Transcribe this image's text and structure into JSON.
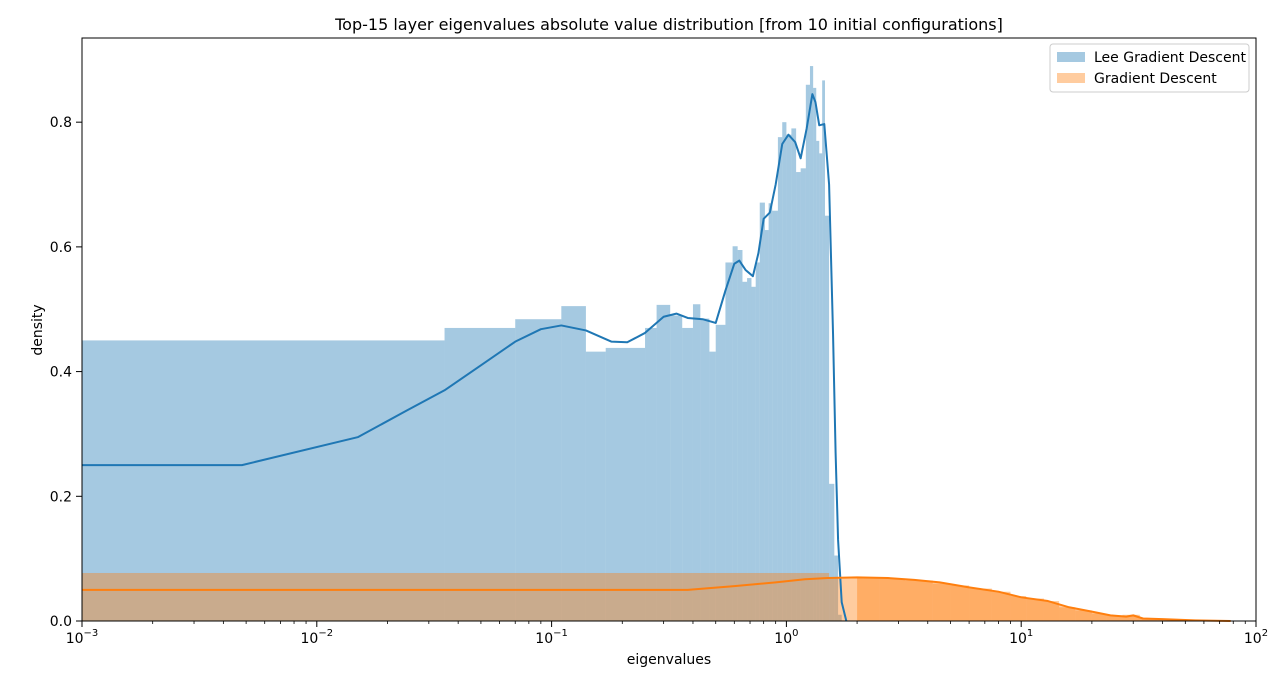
{
  "chart_data": {
    "type": "bar",
    "title": "Top-15 layer eigenvalues absolute value distribution [from 10 initial configurations]",
    "xlabel": "eigenvalues",
    "ylabel": "density",
    "xscale": "log",
    "xlim": [
      0.001,
      100
    ],
    "ylim": [
      0.0,
      0.935
    ],
    "x_ticks": [
      {
        "value": 0.001,
        "base": "10",
        "exp": "−3"
      },
      {
        "value": 0.01,
        "base": "10",
        "exp": "−2"
      },
      {
        "value": 0.1,
        "base": "10",
        "exp": "−1"
      },
      {
        "value": 1,
        "base": "10",
        "exp": "0"
      },
      {
        "value": 10,
        "base": "10",
        "exp": "1"
      },
      {
        "value": 100,
        "base": "10",
        "exp": "2"
      }
    ],
    "y_ticks": [
      {
        "value": 0.0,
        "label": "0.0"
      },
      {
        "value": 0.2,
        "label": "0.2"
      },
      {
        "value": 0.4,
        "label": "0.4"
      },
      {
        "value": 0.6,
        "label": "0.6"
      },
      {
        "value": 0.8,
        "label": "0.8"
      }
    ],
    "legend_position": "top-right",
    "series": [
      {
        "name": "Lee Gradient Descent",
        "color": "#1f77b4",
        "hist_color": "#a6c8e0",
        "hist": [
          [
            0.001,
            0.035,
            0.45
          ],
          [
            0.035,
            0.07,
            0.47
          ],
          [
            0.07,
            0.11,
            0.484
          ],
          [
            0.11,
            0.14,
            0.505
          ],
          [
            0.14,
            0.17,
            0.432
          ],
          [
            0.17,
            0.25,
            0.438
          ],
          [
            0.25,
            0.28,
            0.47
          ],
          [
            0.28,
            0.32,
            0.507
          ],
          [
            0.32,
            0.36,
            0.49
          ],
          [
            0.36,
            0.4,
            0.47
          ],
          [
            0.4,
            0.43,
            0.508
          ],
          [
            0.43,
            0.47,
            0.485
          ],
          [
            0.47,
            0.5,
            0.432
          ],
          [
            0.5,
            0.55,
            0.475
          ],
          [
            0.55,
            0.59,
            0.575
          ],
          [
            0.59,
            0.62,
            0.601
          ],
          [
            0.62,
            0.65,
            0.595
          ],
          [
            0.65,
            0.68,
            0.544
          ],
          [
            0.68,
            0.71,
            0.55
          ],
          [
            0.71,
            0.74,
            0.536
          ],
          [
            0.74,
            0.77,
            0.575
          ],
          [
            0.77,
            0.81,
            0.671
          ],
          [
            0.81,
            0.84,
            0.627
          ],
          [
            0.84,
            0.87,
            0.67
          ],
          [
            0.87,
            0.92,
            0.658
          ],
          [
            0.92,
            0.96,
            0.776
          ],
          [
            0.96,
            1.0,
            0.8
          ],
          [
            1.0,
            1.05,
            0.78
          ],
          [
            1.05,
            1.1,
            0.79
          ],
          [
            1.1,
            1.15,
            0.72
          ],
          [
            1.15,
            1.21,
            0.726
          ],
          [
            1.21,
            1.26,
            0.86
          ],
          [
            1.26,
            1.3,
            0.89
          ],
          [
            1.3,
            1.34,
            0.855
          ],
          [
            1.34,
            1.38,
            0.77
          ],
          [
            1.38,
            1.42,
            0.75
          ],
          [
            1.42,
            1.46,
            0.867
          ],
          [
            1.46,
            1.52,
            0.65
          ],
          [
            1.52,
            1.6,
            0.22
          ],
          [
            1.6,
            1.66,
            0.105
          ],
          [
            1.66,
            1.72,
            0.01
          ]
        ],
        "kde": [
          [
            0.001,
            0.25
          ],
          [
            0.0048,
            0.25
          ],
          [
            0.015,
            0.295
          ],
          [
            0.024,
            0.337
          ],
          [
            0.035,
            0.37
          ],
          [
            0.05,
            0.41
          ],
          [
            0.07,
            0.448
          ],
          [
            0.09,
            0.468
          ],
          [
            0.11,
            0.474
          ],
          [
            0.14,
            0.466
          ],
          [
            0.18,
            0.448
          ],
          [
            0.21,
            0.447
          ],
          [
            0.25,
            0.462
          ],
          [
            0.3,
            0.488
          ],
          [
            0.34,
            0.493
          ],
          [
            0.38,
            0.486
          ],
          [
            0.44,
            0.484
          ],
          [
            0.5,
            0.478
          ],
          [
            0.55,
            0.53
          ],
          [
            0.6,
            0.573
          ],
          [
            0.63,
            0.578
          ],
          [
            0.67,
            0.563
          ],
          [
            0.72,
            0.553
          ],
          [
            0.76,
            0.59
          ],
          [
            0.8,
            0.645
          ],
          [
            0.85,
            0.655
          ],
          [
            0.9,
            0.7
          ],
          [
            0.96,
            0.765
          ],
          [
            1.02,
            0.78
          ],
          [
            1.09,
            0.768
          ],
          [
            1.15,
            0.742
          ],
          [
            1.22,
            0.79
          ],
          [
            1.29,
            0.845
          ],
          [
            1.33,
            0.832
          ],
          [
            1.38,
            0.795
          ],
          [
            1.45,
            0.797
          ],
          [
            1.52,
            0.7
          ],
          [
            1.58,
            0.46
          ],
          [
            1.62,
            0.27
          ],
          [
            1.66,
            0.13
          ],
          [
            1.72,
            0.03
          ],
          [
            1.8,
            0.0
          ]
        ]
      },
      {
        "name": "Gradient Descent",
        "color": "#ff7f0e",
        "hist_color": "#ffbf86",
        "hist": [
          [
            0.001,
            1.52,
            0.077
          ],
          [
            1.52,
            2.0,
            0.069
          ],
          [
            2.0,
            2.5,
            0.07
          ],
          [
            2.5,
            3.2,
            0.068
          ],
          [
            3.2,
            4.2,
            0.065
          ],
          [
            4.2,
            5.0,
            0.06
          ],
          [
            5.0,
            6.0,
            0.057
          ],
          [
            6.0,
            7.5,
            0.052
          ],
          [
            7.5,
            9.0,
            0.047
          ],
          [
            9.0,
            10.5,
            0.04
          ],
          [
            10.5,
            12.5,
            0.036
          ],
          [
            12.5,
            14.5,
            0.032
          ],
          [
            14.5,
            17.0,
            0.022
          ],
          [
            17.0,
            20.0,
            0.017
          ],
          [
            20.0,
            23.0,
            0.012
          ],
          [
            23.0,
            27.0,
            0.009
          ],
          [
            27.0,
            32.0,
            0.01
          ],
          [
            32.0,
            38.0,
            0.004
          ],
          [
            38.0,
            50.0,
            0.003
          ],
          [
            50.0,
            65.0,
            0.001
          ],
          [
            65.0,
            78.0,
            0.0005
          ]
        ],
        "kde": [
          [
            0.001,
            0.05
          ],
          [
            0.38,
            0.05
          ],
          [
            0.6,
            0.056
          ],
          [
            0.9,
            0.062
          ],
          [
            1.2,
            0.067
          ],
          [
            1.5,
            0.069
          ],
          [
            2.0,
            0.07
          ],
          [
            2.7,
            0.069
          ],
          [
            3.5,
            0.066
          ],
          [
            4.5,
            0.062
          ],
          [
            6.0,
            0.054
          ],
          [
            8.0,
            0.047
          ],
          [
            10.0,
            0.038
          ],
          [
            13.0,
            0.032
          ],
          [
            16.0,
            0.022
          ],
          [
            20.0,
            0.015
          ],
          [
            24.0,
            0.009
          ],
          [
            28.0,
            0.007
          ],
          [
            30.0,
            0.009
          ],
          [
            33.0,
            0.004
          ],
          [
            40.0,
            0.003
          ],
          [
            55.0,
            0.001
          ],
          [
            78.0,
            0.0
          ]
        ]
      }
    ]
  }
}
